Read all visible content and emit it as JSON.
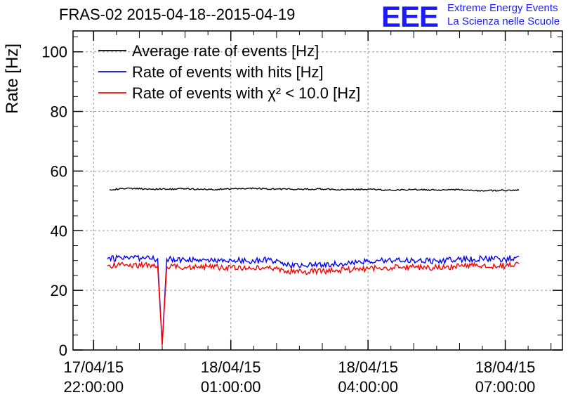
{
  "header": {
    "title": "FRAS-02 2015-04-18--2015-04-19",
    "logo_text": "EEE",
    "logo_line1": "Extreme Energy Events",
    "logo_line2": "La Scienza nelle Scuole"
  },
  "chart_data": {
    "type": "line",
    "title": "FRAS-02 2015-04-18--2015-04-19",
    "ylabel": "Rate [Hz]",
    "xlabel": "",
    "ylim": [
      0,
      107
    ],
    "grid": true,
    "legend_position": "top-left",
    "x_ticks": [
      {
        "line1": "17/04/15",
        "line2": "22:00:00",
        "t": 0
      },
      {
        "line1": "18/04/15",
        "line2": "01:00:00",
        "t": 3
      },
      {
        "line1": "18/04/15",
        "line2": "04:00:00",
        "t": 6
      },
      {
        "line1": "18/04/15",
        "line2": "07:00:00",
        "t": 9
      }
    ],
    "y_ticks": [
      0,
      20,
      40,
      60,
      80,
      100
    ],
    "x_unit": "hours since 17/04/15 22:00:00",
    "xlim": [
      -0.45,
      10.25
    ],
    "series": [
      {
        "name": "Average rate of events [Hz]",
        "color": "#000000",
        "points": [
          [
            0.35,
            53.8
          ],
          [
            0.8,
            54.2
          ],
          [
            1.2,
            54.0
          ],
          [
            1.6,
            53.9
          ],
          [
            2.0,
            54.1
          ],
          [
            2.5,
            53.8
          ],
          [
            3.0,
            54.0
          ],
          [
            3.5,
            54.2
          ],
          [
            4.0,
            54.0
          ],
          [
            4.5,
            53.9
          ],
          [
            5.0,
            54.0
          ],
          [
            5.5,
            53.7
          ],
          [
            6.0,
            53.9
          ],
          [
            6.5,
            53.6
          ],
          [
            7.0,
            53.8
          ],
          [
            7.5,
            53.6
          ],
          [
            8.0,
            53.7
          ],
          [
            8.5,
            53.4
          ],
          [
            8.9,
            53.5
          ],
          [
            9.3,
            53.6
          ]
        ]
      },
      {
        "name": "Rate of events with hits [Hz]",
        "color": "#0000ff",
        "points": [
          [
            0.3,
            30.5
          ],
          [
            0.7,
            31.0
          ],
          [
            1.1,
            30.8
          ],
          [
            1.4,
            30.6
          ],
          [
            1.5,
            2.0
          ],
          [
            1.6,
            30.5
          ],
          [
            2.0,
            30.2
          ],
          [
            2.5,
            30.4
          ],
          [
            3.0,
            30.3
          ],
          [
            3.5,
            29.8
          ],
          [
            3.8,
            30.5
          ],
          [
            4.2,
            28.5
          ],
          [
            4.6,
            28.2
          ],
          [
            5.0,
            28.6
          ],
          [
            5.5,
            29.0
          ],
          [
            6.0,
            29.6
          ],
          [
            6.5,
            30.0
          ],
          [
            7.0,
            30.2
          ],
          [
            7.5,
            29.8
          ],
          [
            8.0,
            30.4
          ],
          [
            8.5,
            30.6
          ],
          [
            9.0,
            30.3
          ],
          [
            9.3,
            31.5
          ]
        ]
      },
      {
        "name": "Rate of events with χ² < 10.0 [Hz]",
        "color": "#ff0000",
        "points": [
          [
            0.3,
            28.2
          ],
          [
            0.7,
            28.6
          ],
          [
            1.1,
            28.4
          ],
          [
            1.4,
            28.2
          ],
          [
            1.5,
            1.5
          ],
          [
            1.6,
            28.0
          ],
          [
            2.0,
            27.8
          ],
          [
            2.5,
            28.0
          ],
          [
            3.0,
            27.6
          ],
          [
            3.5,
            27.4
          ],
          [
            3.8,
            28.0
          ],
          [
            4.2,
            26.4
          ],
          [
            4.6,
            26.2
          ],
          [
            5.0,
            26.5
          ],
          [
            5.5,
            26.8
          ],
          [
            6.0,
            27.2
          ],
          [
            6.5,
            27.6
          ],
          [
            7.0,
            27.9
          ],
          [
            7.5,
            27.6
          ],
          [
            8.0,
            28.1
          ],
          [
            8.5,
            28.3
          ],
          [
            9.0,
            28.2
          ],
          [
            9.3,
            29.0
          ]
        ]
      }
    ]
  }
}
